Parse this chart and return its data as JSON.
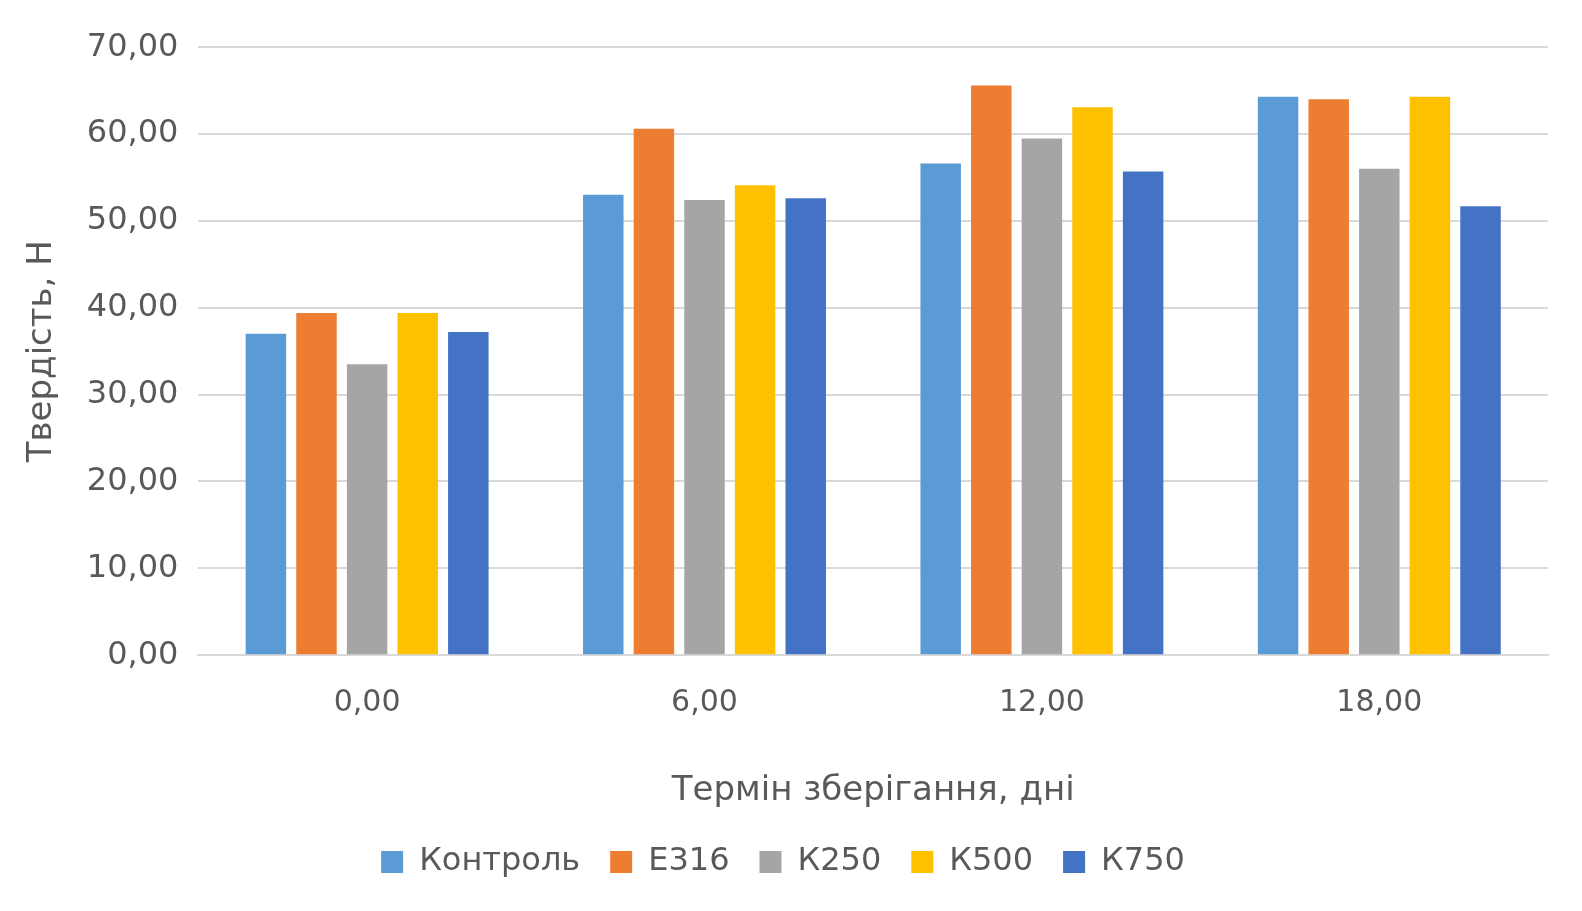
{
  "chart_data": {
    "type": "bar",
    "xlabel": "Термін зберігання, дні",
    "ylabel": "Твердість, Н",
    "categories": [
      "0,00",
      "6,00",
      "12,00",
      "18,00"
    ],
    "series": [
      {
        "name": "Контроль",
        "color": "#5b9bd5",
        "values": [
          37.0,
          53.0,
          56.6,
          64.3
        ]
      },
      {
        "name": "E316",
        "color": "#ed7d31",
        "values": [
          39.4,
          60.6,
          65.6,
          64.0
        ]
      },
      {
        "name": "К250",
        "color": "#a5a5a5",
        "values": [
          33.5,
          52.4,
          59.5,
          56.0
        ]
      },
      {
        "name": "К500",
        "color": "#ffc000",
        "values": [
          39.4,
          54.1,
          63.1,
          64.3
        ]
      },
      {
        "name": "К750",
        "color": "#4472c4",
        "values": [
          37.2,
          52.6,
          55.7,
          51.7
        ]
      }
    ],
    "ylim": [
      0,
      70
    ],
    "yticks": [
      {
        "value": 0,
        "label": "0,00"
      },
      {
        "value": 10,
        "label": "10,00"
      },
      {
        "value": 20,
        "label": "20,00"
      },
      {
        "value": 30,
        "label": "30,00"
      },
      {
        "value": 40,
        "label": "40,00"
      },
      {
        "value": 50,
        "label": "50,00"
      },
      {
        "value": 60,
        "label": "60,00"
      },
      {
        "value": 70,
        "label": "70,00"
      }
    ],
    "grid": "y",
    "legend": "bottom"
  }
}
